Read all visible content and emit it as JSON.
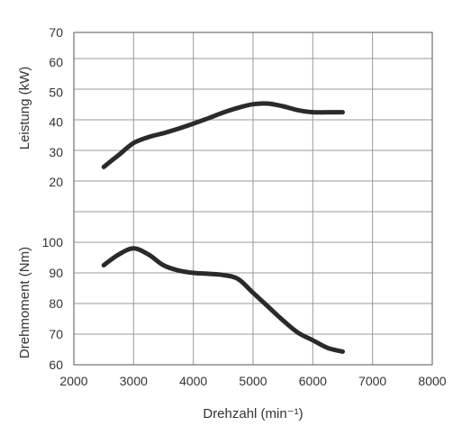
{
  "chart_data": {
    "type": "line",
    "xlabel": "Drehzahl (min⁻¹)",
    "xlim": [
      2000,
      8000
    ],
    "x_ticks": [
      "2000",
      "3000",
      "4000",
      "5000",
      "6000",
      "7000",
      "8000"
    ],
    "grid": true,
    "panels": [
      {
        "ylabel": "Leistung (kW)",
        "ylim": [
          20,
          70
        ],
        "y_ticks": [
          "20",
          "30",
          "40",
          "50",
          "60",
          "70"
        ],
        "series": [
          {
            "x": [
              2500,
              2750,
              3000,
              3250,
              3500,
              3750,
              4000,
              4250,
              4500,
              4750,
              5000,
              5250,
              5500,
              5750,
              6000,
              6250,
              6500
            ],
            "values": [
              25,
              29,
              33,
              35,
              36.3,
              37.8,
              39.5,
              41.3,
              43.2,
              44.8,
              46.0,
              46.2,
              45.3,
              44.0,
              43.3,
              43.3,
              43.3
            ]
          }
        ]
      },
      {
        "ylabel": "Drehmoment (Nm)",
        "ylim": [
          60,
          100
        ],
        "y_ticks": [
          "60",
          "70",
          "80",
          "90",
          "100"
        ],
        "series": [
          {
            "x": [
              2500,
              2750,
              3000,
              3250,
              3500,
              3750,
              4000,
              4250,
              4500,
              4750,
              5000,
              5250,
              5500,
              5750,
              6000,
              6250,
              6500
            ],
            "values": [
              92.5,
              96,
              98,
              96,
              92.5,
              90.8,
              90,
              89.7,
              89.3,
              88,
              83.5,
              79,
              74.5,
              70.5,
              68,
              65.5,
              64.3
            ]
          }
        ]
      }
    ]
  }
}
